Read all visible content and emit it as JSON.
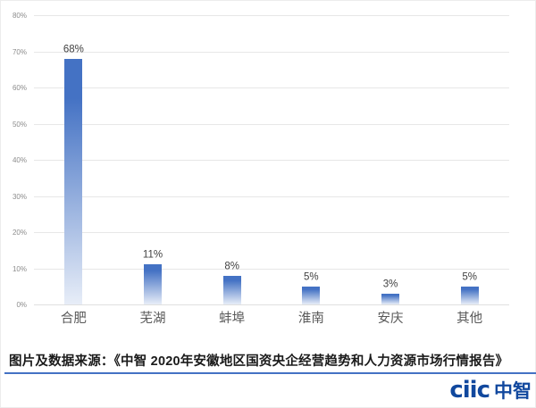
{
  "chart_data": {
    "type": "bar",
    "title": "",
    "categories": [
      "合肥",
      "芜湖",
      "蚌埠",
      "淮南",
      "安庆",
      "其他"
    ],
    "values": [
      68,
      11,
      8,
      5,
      3,
      5
    ],
    "data_labels": [
      "68%",
      "11%",
      "8%",
      "5%",
      "3%",
      "5%"
    ],
    "xlabel": "",
    "ylabel": "",
    "ylim": [
      0,
      80
    ],
    "ytick_step": 10,
    "ytick_labels": [
      "0%",
      "10%",
      "20%",
      "30%",
      "40%",
      "50%",
      "60%",
      "70%",
      "80%"
    ],
    "grid": true,
    "legend": "none",
    "colors": {
      "bar_top": "#4472C4",
      "bar_fade_to": "#FFFFFF",
      "gridline": "#E7E7E7",
      "axis_line": "#DFDFDF",
      "tick_label": "#8C8C8C",
      "data_label": "#404040",
      "category_label": "#595959"
    }
  },
  "source": {
    "text": "图片及数据来源：《中智 2020年安徽地区国资央企经营趋势和人力资源市场行情报告》",
    "underline_color": "#4472C4"
  },
  "logo": {
    "latin": "ciic",
    "cn": "中智",
    "color": "#11489E"
  }
}
